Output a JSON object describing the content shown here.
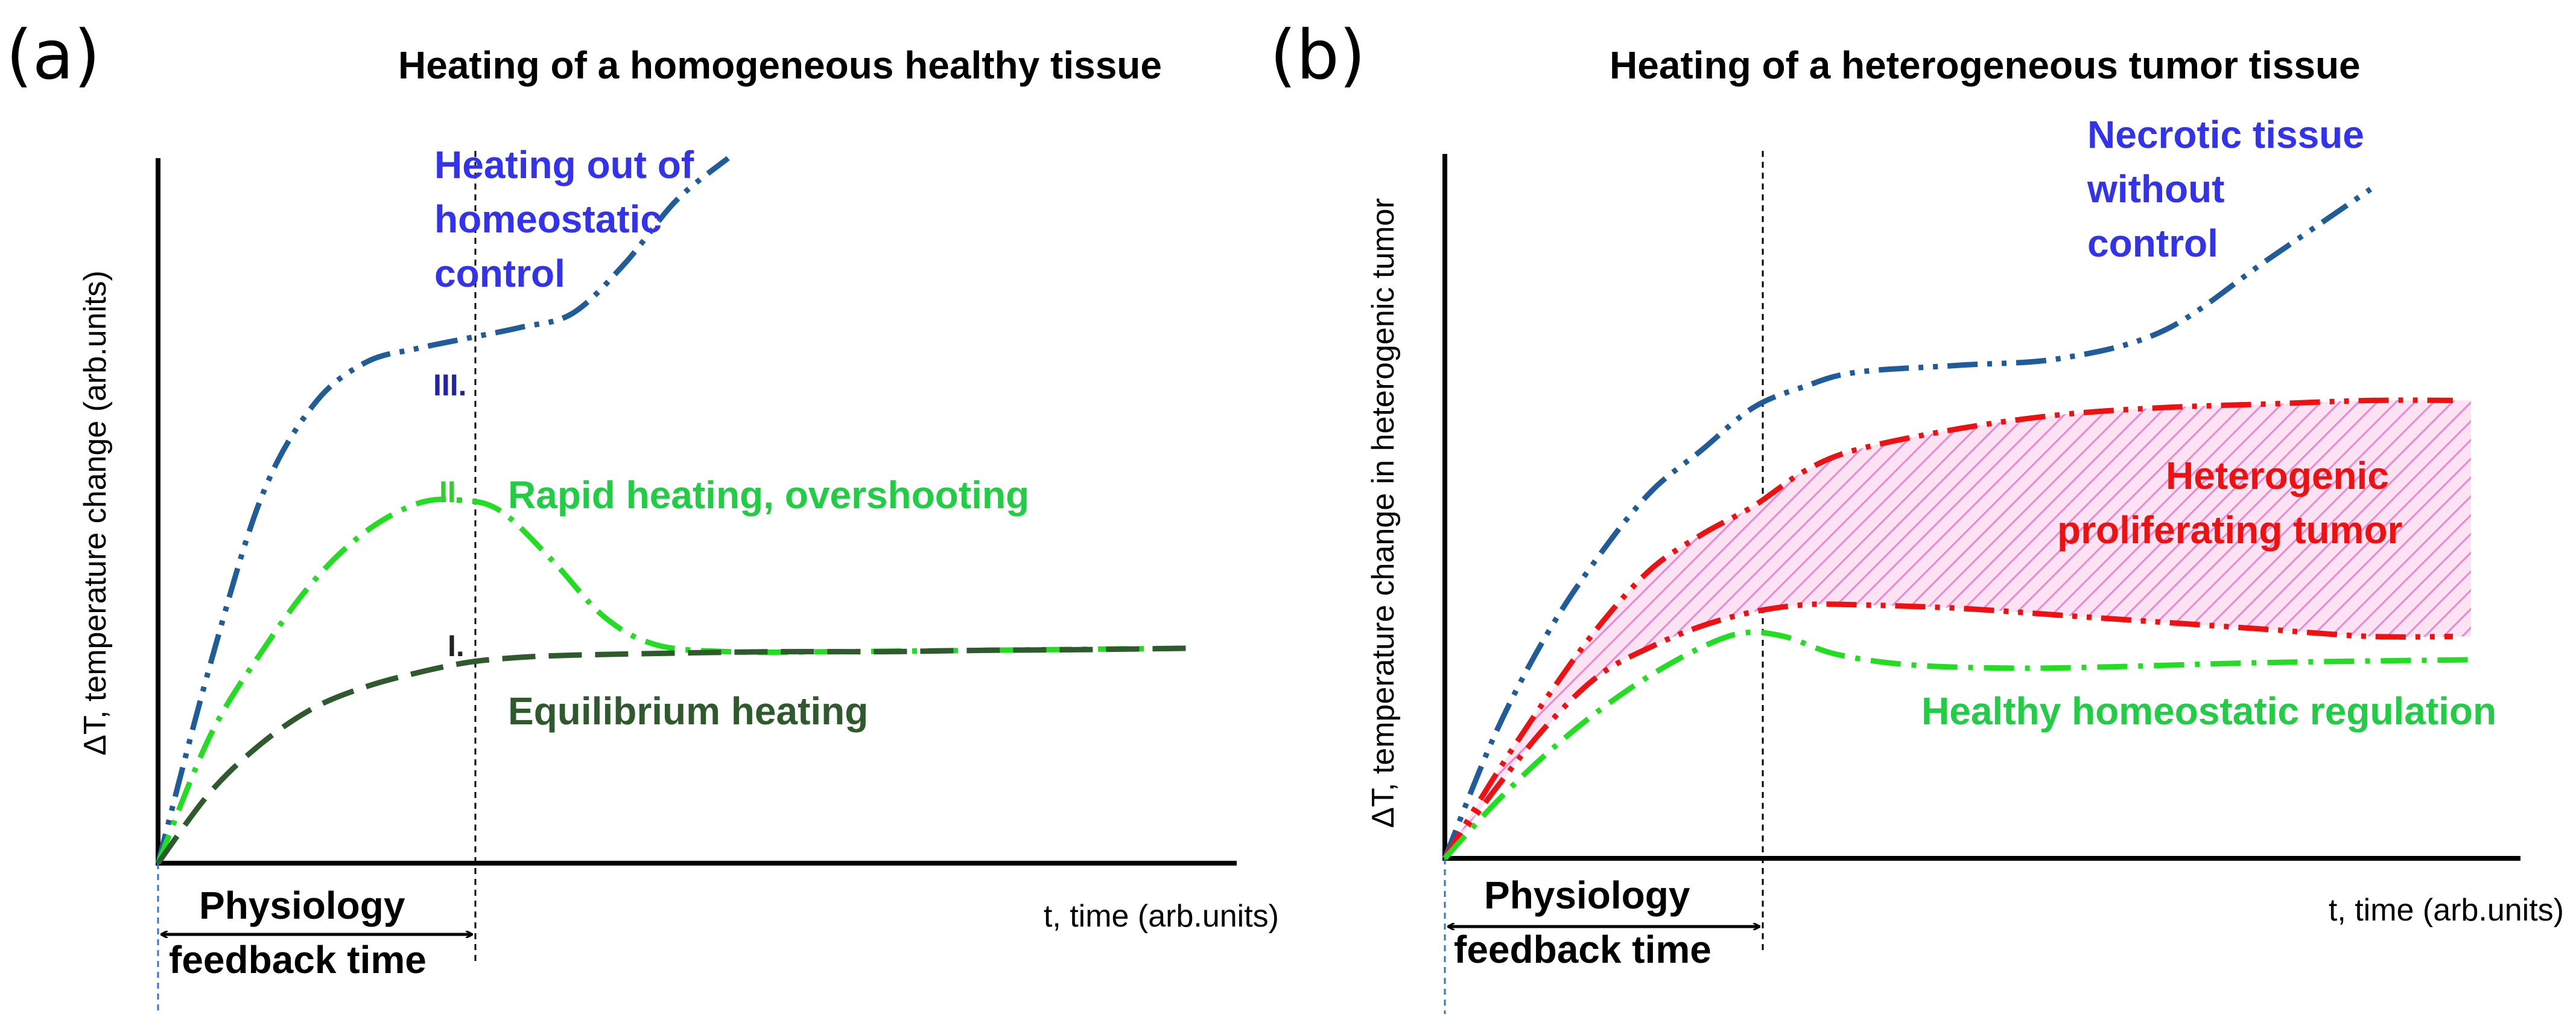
{
  "colors": {
    "blue_curve": "#1f5c99",
    "blue_text": "#3333ee",
    "green_curve": "#22dd22",
    "green_text": "#22cc44",
    "dark_green": "#2e5a2e",
    "red": "#ee1111",
    "pink_fill": "#f4b8e0"
  },
  "chart_data": [
    {
      "type": "line",
      "panel_label": "(a)",
      "title": "Heating of a homogeneous healthy tissue",
      "xlabel": "t, time (arb.units)",
      "ylabel": "ΔT, temperature change (arb.units)",
      "xlim": [
        0,
        10
      ],
      "ylim": [
        0,
        10
      ],
      "grid": false,
      "feedback_time_x": 2.95,
      "feedback_label": [
        "Physiology",
        "feedback time"
      ],
      "series": [
        {
          "name": "III.",
          "style": "dash-dot-dot",
          "x": [
            0,
            0.5,
            1.0,
            1.5,
            2.0,
            2.5,
            3.0,
            3.5,
            4.0,
            4.5,
            5.0,
            5.5
          ],
          "y": [
            0,
            2.8,
            5.2,
            6.5,
            7.1,
            7.3,
            7.45,
            7.6,
            7.8,
            8.5,
            9.4,
            10.0
          ]
        },
        {
          "name": "II.",
          "style": "dash-dot",
          "x": [
            0,
            0.5,
            1.0,
            1.5,
            2.0,
            2.5,
            2.9,
            3.3,
            3.8,
            4.3,
            4.8,
            5.5,
            6.5,
            8.0,
            10.0
          ],
          "y": [
            0,
            1.8,
            3.0,
            4.0,
            4.7,
            5.1,
            5.15,
            5.0,
            4.3,
            3.5,
            3.1,
            3.0,
            3.0,
            3.02,
            3.05
          ]
        },
        {
          "name": "I.",
          "style": "dashed",
          "x": [
            0,
            0.5,
            1.0,
            1.5,
            2.0,
            2.5,
            3.0,
            3.5,
            4.0,
            5.0,
            6.0,
            7.0,
            8.0,
            9.0,
            10.0
          ],
          "y": [
            0,
            1.0,
            1.7,
            2.2,
            2.5,
            2.7,
            2.85,
            2.92,
            2.95,
            2.98,
            3.0,
            3.0,
            3.02,
            3.03,
            3.05
          ]
        }
      ],
      "annotations": {
        "series_iii": [
          "Heating out of",
          "homeostatic",
          "control"
        ],
        "series_ii": "Rapid heating, overshooting",
        "series_i": "Equilibrium heating"
      }
    },
    {
      "type": "line",
      "panel_label": "(b)",
      "title": "Heating of a heterogeneous tumor tissue",
      "xlabel": "t, time (arb.units)",
      "ylabel": "ΔT, temperature change in heterogenic tumor",
      "xlim": [
        0,
        10
      ],
      "ylim": [
        0,
        10
      ],
      "grid": false,
      "feedback_time_x": 2.95,
      "feedback_label": [
        "Physiology",
        "feedback time"
      ],
      "series": [
        {
          "name": "Necrotic tissue without control",
          "style": "dash-dot-dot",
          "x": [
            0,
            0.5,
            1.0,
            1.5,
            2.0,
            2.5,
            3.0,
            3.5,
            4.0,
            5.0,
            6.0,
            7.0,
            8.0,
            9.0
          ],
          "y": [
            0,
            1.8,
            3.2,
            4.3,
            5.2,
            5.8,
            6.4,
            6.7,
            6.9,
            7.0,
            7.1,
            7.5,
            8.5,
            9.5
          ]
        },
        {
          "name": "Heterogenic proliferating tumor (upper)",
          "style": "dash-dot-dot",
          "x": [
            0,
            0.5,
            1.0,
            1.5,
            2.0,
            2.5,
            3.0,
            3.5,
            4.0,
            5.0,
            6.0,
            7.0,
            8.0,
            9.0,
            9.8
          ],
          "y": [
            0,
            1.2,
            2.3,
            3.3,
            4.1,
            4.6,
            5.0,
            5.5,
            5.8,
            6.1,
            6.3,
            6.4,
            6.45,
            6.5,
            6.5
          ]
        },
        {
          "name": "Heterogenic proliferating tumor (lower)",
          "style": "dash-dot-dot",
          "x": [
            0,
            0.5,
            1.0,
            1.5,
            2.0,
            2.5,
            3.0,
            3.5,
            4.0,
            5.0,
            6.0,
            7.0,
            8.0,
            9.0,
            9.8
          ],
          "y": [
            0,
            1.0,
            1.9,
            2.6,
            3.0,
            3.3,
            3.5,
            3.6,
            3.6,
            3.55,
            3.45,
            3.35,
            3.25,
            3.15,
            3.15
          ]
        },
        {
          "name": "Healthy homeostatic regulation",
          "style": "dash-dot",
          "x": [
            0,
            0.5,
            1.0,
            1.5,
            2.0,
            2.5,
            2.9,
            3.3,
            3.8,
            4.5,
            5.5,
            6.5,
            8.0,
            10.0
          ],
          "y": [
            0,
            0.8,
            1.5,
            2.1,
            2.6,
            3.0,
            3.2,
            3.15,
            2.9,
            2.75,
            2.7,
            2.72,
            2.78,
            2.82
          ]
        }
      ],
      "annotations": {
        "necrotic": [
          "Necrotic tissue",
          "without",
          "control"
        ],
        "tumor": [
          "Heterogenic",
          "proliferating tumor"
        ],
        "healthy": "Healthy homeostatic regulation"
      }
    }
  ]
}
